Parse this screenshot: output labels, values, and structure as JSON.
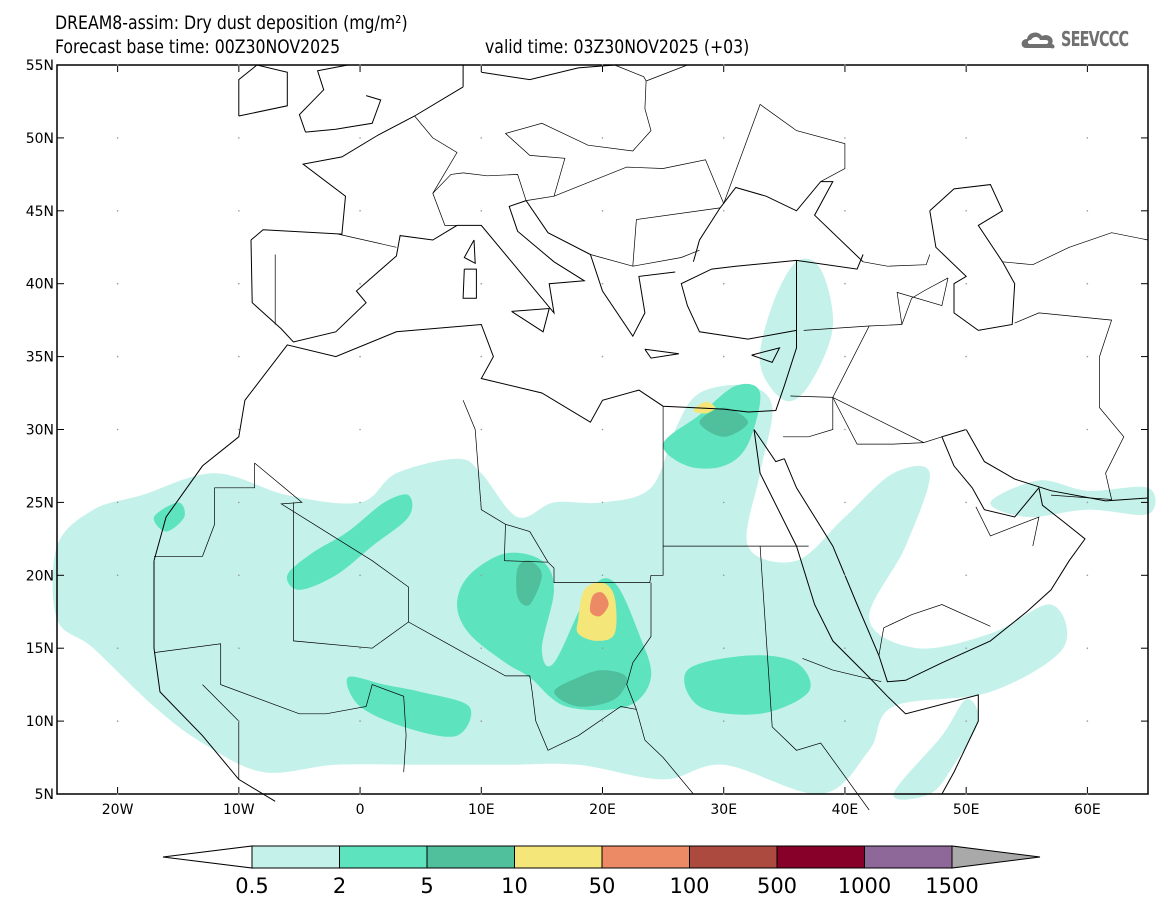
{
  "header": {
    "title": "DREAM8-assim: Dry dust deposition (mg/m²)",
    "base_time": "Forecast base time: 00Z30NOV2025",
    "valid_time": "valid time: 03Z30NOV2025 (+03)"
  },
  "logo": {
    "text": "SEEVCCC",
    "icon": "cloud-icon"
  },
  "map": {
    "lon_range": [
      -25,
      65
    ],
    "lat_range": [
      5,
      55
    ],
    "lat_labels": [
      {
        "lat": 55,
        "label": "55N"
      },
      {
        "lat": 50,
        "label": "50N"
      },
      {
        "lat": 45,
        "label": "45N"
      },
      {
        "lat": 40,
        "label": "40N"
      },
      {
        "lat": 35,
        "label": "35N"
      },
      {
        "lat": 30,
        "label": "30N"
      },
      {
        "lat": 25,
        "label": "25N"
      },
      {
        "lat": 20,
        "label": "20N"
      },
      {
        "lat": 15,
        "label": "15N"
      },
      {
        "lat": 10,
        "label": "10N"
      },
      {
        "lat": 5,
        "label": "5N"
      }
    ],
    "lon_labels": [
      {
        "lon": -20,
        "label": "20W"
      },
      {
        "lon": -10,
        "label": "10W"
      },
      {
        "lon": 0,
        "label": "0"
      },
      {
        "lon": 10,
        "label": "10E"
      },
      {
        "lon": 20,
        "label": "20E"
      },
      {
        "lon": 30,
        "label": "30E"
      },
      {
        "lon": 40,
        "label": "40E"
      },
      {
        "lon": 50,
        "label": "50E"
      },
      {
        "lon": 60,
        "label": "60E"
      }
    ]
  },
  "colorbar": {
    "labels": [
      "0.5",
      "2",
      "5",
      "10",
      "50",
      "100",
      "500",
      "1000",
      "1500"
    ],
    "colors": [
      "#c4f2ea",
      "#5de4be",
      "#50bf9c",
      "#f5e67a",
      "#ec8a66",
      "#ac4a40",
      "#86002a",
      "#8e6898"
    ],
    "under_color": "#ffffff",
    "over_color": "#a9a9a9"
  },
  "chart_data": {
    "type": "heatmap",
    "title": "DREAM8-assim: Dry dust deposition (mg/m²)",
    "units": "mg/m²",
    "levels": [
      0.5,
      2,
      5,
      10,
      50,
      100,
      500,
      1000,
      1500
    ],
    "regions": [
      {
        "level": 0,
        "name": "Sahel-Sahara broad band",
        "lonlat": [
          [
            -25,
            22
          ],
          [
            -22,
            24.5
          ],
          [
            -18,
            25.5
          ],
          [
            -12,
            27
          ],
          [
            -6,
            25.5
          ],
          [
            0,
            25
          ],
          [
            3,
            27
          ],
          [
            8,
            28
          ],
          [
            10,
            27
          ],
          [
            13,
            24
          ],
          [
            16,
            25
          ],
          [
            20,
            25
          ],
          [
            24,
            26
          ],
          [
            26,
            30
          ],
          [
            28,
            32.5
          ],
          [
            32,
            33
          ],
          [
            34,
            31.5
          ],
          [
            33,
            27
          ],
          [
            32,
            22
          ],
          [
            36,
            21
          ],
          [
            40,
            24
          ],
          [
            44,
            27
          ],
          [
            47,
            27
          ],
          [
            45,
            22
          ],
          [
            42,
            17
          ],
          [
            46,
            15
          ],
          [
            52,
            16
          ],
          [
            57,
            18
          ],
          [
            58,
            15
          ],
          [
            52,
            12
          ],
          [
            44,
            11
          ],
          [
            42,
            8
          ],
          [
            38,
            5
          ],
          [
            30,
            7
          ],
          [
            25,
            6
          ],
          [
            18,
            7
          ],
          [
            12,
            7
          ],
          [
            5,
            7
          ],
          [
            -2,
            7
          ],
          [
            -8,
            6.5
          ],
          [
            -13,
            8.5
          ],
          [
            -17,
            11
          ],
          [
            -22,
            15
          ],
          [
            -25,
            17
          ]
        ]
      },
      {
        "level": 0,
        "name": "Eastern Mediterranean / Turkey",
        "lonlat": [
          [
            33,
            34.5
          ],
          [
            34,
            38.5
          ],
          [
            36,
            41.5
          ],
          [
            38,
            41
          ],
          [
            39,
            37
          ],
          [
            37,
            33
          ],
          [
            35,
            32
          ]
        ]
      },
      {
        "level": 0,
        "name": "Persian Gulf strip",
        "lonlat": [
          [
            52,
            25
          ],
          [
            56,
            26.5
          ],
          [
            60,
            25.8
          ],
          [
            65,
            26
          ],
          [
            65,
            24.2
          ],
          [
            60,
            24.5
          ],
          [
            55,
            24
          ]
        ]
      },
      {
        "level": 0,
        "name": "Somalia coast",
        "lonlat": [
          [
            44,
            5
          ],
          [
            48,
            9
          ],
          [
            50,
            11.5
          ],
          [
            51,
            10
          ],
          [
            49,
            7
          ],
          [
            47,
            5
          ]
        ]
      },
      {
        "level": 1,
        "name": "Mali diagonal band",
        "lonlat": [
          [
            -6,
            20
          ],
          [
            -4,
            21.5
          ],
          [
            -1,
            23
          ],
          [
            2,
            25
          ],
          [
            4,
            25.5
          ],
          [
            4,
            24
          ],
          [
            1,
            22
          ],
          [
            -2,
            20
          ],
          [
            -5,
            19
          ]
        ]
      },
      {
        "level": 1,
        "name": "Niger-Chad core",
        "lonlat": [
          [
            9,
            20
          ],
          [
            12,
            21.5
          ],
          [
            15,
            21
          ],
          [
            16,
            19
          ],
          [
            15,
            15
          ],
          [
            16,
            14
          ],
          [
            19,
            19
          ],
          [
            21,
            19.5
          ],
          [
            23,
            16
          ],
          [
            24,
            13
          ],
          [
            22,
            11
          ],
          [
            17,
            11
          ],
          [
            14,
            13
          ],
          [
            12,
            14
          ],
          [
            9,
            16
          ],
          [
            8,
            18
          ]
        ]
      },
      {
        "level": 1,
        "name": "Nigeria patch",
        "lonlat": [
          [
            -1,
            13
          ],
          [
            2,
            12.5
          ],
          [
            5,
            12
          ],
          [
            9,
            11
          ],
          [
            8,
            9
          ],
          [
            4,
            9.5
          ],
          [
            0,
            11
          ]
        ]
      },
      {
        "level": 1,
        "name": "Sudan band",
        "lonlat": [
          [
            27,
            13.5
          ],
          [
            32,
            14.5
          ],
          [
            36,
            14
          ],
          [
            37,
            12
          ],
          [
            33,
            10.5
          ],
          [
            28,
            11
          ]
        ]
      },
      {
        "level": 1,
        "name": "Egypt coast",
        "lonlat": [
          [
            25,
            29
          ],
          [
            28,
            31
          ],
          [
            31,
            33
          ],
          [
            33,
            32.5
          ],
          [
            32,
            29
          ],
          [
            30,
            27.5
          ],
          [
            27,
            27.5
          ]
        ]
      },
      {
        "level": 1,
        "name": "Mauritania coast",
        "lonlat": [
          [
            -17,
            24
          ],
          [
            -15,
            25
          ],
          [
            -14.5,
            24
          ],
          [
            -16,
            23
          ]
        ]
      },
      {
        "level": 2,
        "name": "Chad dark core",
        "lonlat": [
          [
            16,
            12
          ],
          [
            18,
            13
          ],
          [
            20,
            13.5
          ],
          [
            22,
            13
          ],
          [
            21,
            11.5
          ],
          [
            18,
            11
          ]
        ]
      },
      {
        "level": 2,
        "name": "Niger dark core",
        "lonlat": [
          [
            13,
            20.5
          ],
          [
            14,
            21
          ],
          [
            15,
            20
          ],
          [
            14,
            18
          ],
          [
            13,
            18.5
          ]
        ]
      },
      {
        "level": 2,
        "name": "Egypt dark core",
        "lonlat": [
          [
            28,
            30.5
          ],
          [
            30,
            31.5
          ],
          [
            32,
            30.5
          ],
          [
            30,
            29.5
          ]
        ]
      },
      {
        "level": 3,
        "name": "Chad yellow",
        "lonlat": [
          [
            18,
            17
          ],
          [
            18.5,
            19
          ],
          [
            20,
            19.5
          ],
          [
            21,
            18.5
          ],
          [
            21,
            16
          ],
          [
            19.5,
            15.5
          ],
          [
            18,
            16
          ]
        ]
      },
      {
        "level": 3,
        "name": "Egypt coast yellow",
        "lonlat": [
          [
            27.5,
            31.3
          ],
          [
            28.5,
            31.9
          ],
          [
            29.3,
            31.5
          ],
          [
            28.5,
            31.1
          ]
        ]
      },
      {
        "level": 4,
        "name": "Chad orange",
        "lonlat": [
          [
            19,
            17.5
          ],
          [
            19.2,
            18.6
          ],
          [
            20,
            18.8
          ],
          [
            20.5,
            18
          ],
          [
            19.8,
            17.2
          ]
        ]
      }
    ]
  }
}
